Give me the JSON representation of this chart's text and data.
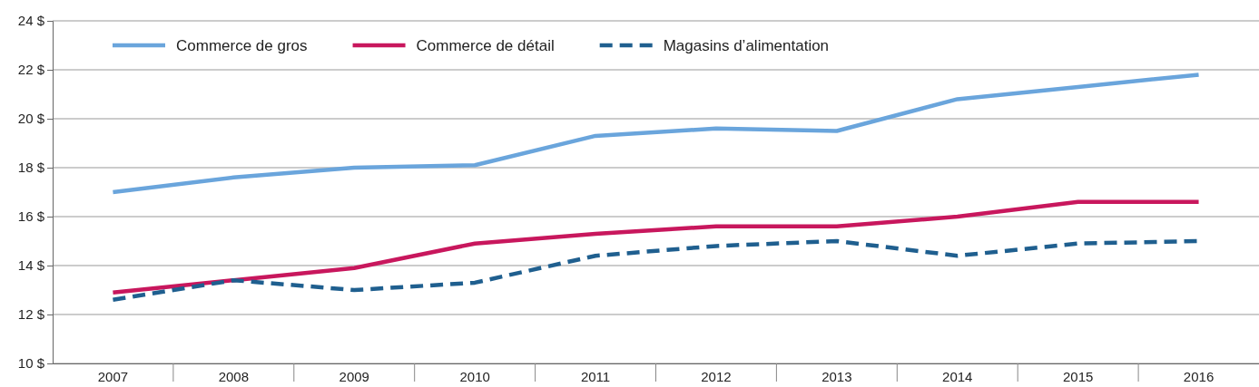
{
  "chart_data": {
    "type": "line",
    "categories": [
      "2007",
      "2008",
      "2009",
      "2010",
      "2011",
      "2012",
      "2013",
      "2014",
      "2015",
      "2016"
    ],
    "ylim": [
      10,
      24
    ],
    "yticks": [
      {
        "value": 10,
        "label": "10 $"
      },
      {
        "value": 12,
        "label": "12 $"
      },
      {
        "value": 14,
        "label": "14 $"
      },
      {
        "value": 16,
        "label": "16 $"
      },
      {
        "value": 18,
        "label": "18 $"
      },
      {
        "value": 20,
        "label": "20 $"
      },
      {
        "value": 22,
        "label": "22 $"
      },
      {
        "value": 24,
        "label": "24 $"
      }
    ],
    "grid": "y",
    "legend": "top left",
    "marker": "none",
    "series": [
      {
        "name": "Commerce de gros",
        "color": "#6aa5dc",
        "line_style": "solid",
        "values": [
          17.0,
          17.6,
          18.0,
          18.1,
          19.3,
          19.6,
          19.5,
          20.8,
          21.3,
          21.8
        ]
      },
      {
        "name": "Commerce de détail",
        "color": "#c8175d",
        "line_style": "solid",
        "values": [
          12.9,
          13.4,
          13.9,
          14.9,
          15.3,
          15.6,
          15.6,
          16.0,
          16.6,
          16.6
        ]
      },
      {
        "name": "Magasins d’alimentation",
        "color": "#1f5f8f",
        "line_style": "dashed",
        "values": [
          12.6,
          13.4,
          13.0,
          13.3,
          14.4,
          14.8,
          15.0,
          14.4,
          14.9,
          15.0
        ]
      }
    ]
  }
}
